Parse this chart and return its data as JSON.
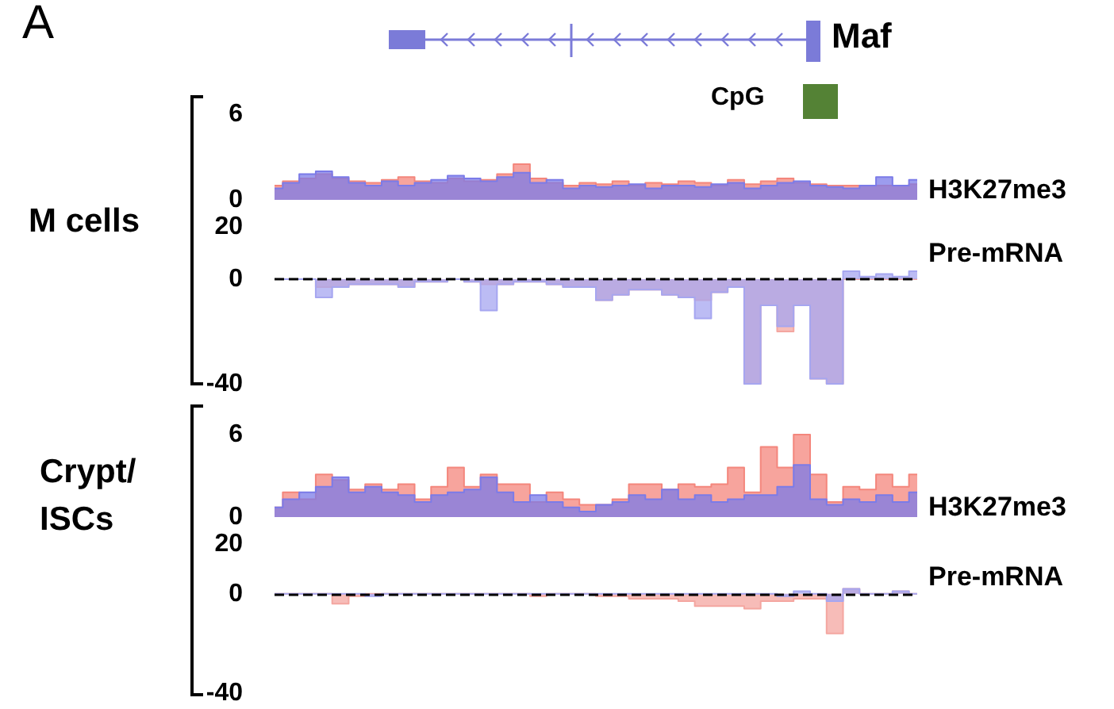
{
  "chart_data": [
    {
      "type": "area",
      "annotations": [
        "H3K27me3",
        "A",
        "Maf",
        "CpG",
        "M cells"
      ],
      "categories": [
        null,
        null,
        null,
        null,
        null,
        null,
        null,
        null,
        null,
        null,
        null,
        null,
        null,
        null,
        null,
        null,
        null,
        null,
        null,
        null,
        null,
        null,
        null,
        null,
        null,
        null,
        null,
        null,
        null,
        null,
        null,
        null,
        null,
        null,
        null,
        null,
        null,
        null,
        null,
        null
      ],
      "ylim": [
        0,
        6
      ],
      "yticks": [
        0,
        6
      ],
      "tick_labels": "y",
      "series": [
        {
          "color": "#f4867c",
          "values": [
            1.0,
            1.3,
            1.5,
            1.8,
            1.5,
            1.3,
            1.2,
            1.4,
            1.6,
            1.3,
            1.2,
            1.5,
            1.3,
            1.4,
            1.8,
            2.5,
            1.5,
            1.2,
            1.0,
            1.2,
            1.1,
            1.3,
            1.0,
            1.2,
            1.1,
            1.3,
            1.2,
            1.0,
            1.4,
            1.1,
            1.3,
            1.5,
            1.2,
            1.1,
            1.0,
            1.0,
            1.0,
            1.0,
            1.0,
            1.1
          ]
        },
        {
          "color": "#7b7be8",
          "values": [
            0.8,
            1.2,
            1.8,
            2.0,
            1.6,
            1.2,
            1.0,
            1.3,
            1.0,
            1.2,
            1.4,
            1.7,
            1.5,
            1.3,
            1.6,
            1.9,
            1.2,
            1.4,
            0.8,
            1.0,
            0.9,
            1.0,
            1.1,
            0.8,
            1.0,
            1.0,
            0.9,
            1.1,
            1.2,
            0.8,
            1.0,
            1.2,
            1.3,
            1.0,
            0.9,
            0.8,
            1.0,
            1.6,
            1.0,
            1.4
          ]
        }
      ]
    },
    {
      "type": "area",
      "annotations": [
        "Pre-mRNA"
      ],
      "categories": [
        null,
        null,
        null,
        null,
        null,
        null,
        null,
        null,
        null,
        null,
        null,
        null,
        null,
        null,
        null,
        null,
        null,
        null,
        null,
        null,
        null,
        null,
        null,
        null,
        null,
        null,
        null,
        null,
        null,
        null,
        null,
        null,
        null,
        null,
        null,
        null,
        null,
        null,
        null,
        null
      ],
      "ylim": [
        -40,
        20
      ],
      "yticks": [
        -40,
        0,
        20
      ],
      "tick_labels": "y",
      "ref_lines": [
        {
          "axis": "y",
          "value": 0,
          "color": "#000000",
          "line_style": "dashed"
        }
      ],
      "series": [
        {
          "color": "#f4a6a0",
          "values": [
            0,
            0,
            0,
            -3,
            -3,
            -2,
            -2,
            -2,
            -3,
            -1,
            -1,
            0,
            -1,
            -2,
            -2,
            -1,
            -1,
            -2,
            -3,
            -3,
            -8,
            -6,
            -4,
            -4,
            -6,
            -7,
            -8,
            -5,
            -3,
            -40,
            -10,
            -20,
            -10,
            -38,
            -40,
            0,
            0,
            0,
            0,
            0
          ]
        },
        {
          "color": "#a6a6f0",
          "values": [
            0,
            0,
            0,
            -7,
            -3,
            -2,
            -2,
            -2,
            -3,
            -1,
            -1,
            0,
            -1,
            -12,
            -2,
            -1,
            -1,
            -2,
            -3,
            -3,
            -8,
            -6,
            -4,
            -4,
            -6,
            -7,
            -15,
            -5,
            -3,
            -40,
            -10,
            -18,
            -10,
            -38,
            -40,
            3,
            1,
            2,
            1,
            3
          ]
        }
      ]
    },
    {
      "type": "area",
      "annotations": [
        "H3K27me3",
        "Crypt/ ISCs"
      ],
      "categories": [
        null,
        null,
        null,
        null,
        null,
        null,
        null,
        null,
        null,
        null,
        null,
        null,
        null,
        null,
        null,
        null,
        null,
        null,
        null,
        null,
        null,
        null,
        null,
        null,
        null,
        null,
        null,
        null,
        null,
        null,
        null,
        null,
        null,
        null,
        null,
        null,
        null,
        null,
        null,
        null
      ],
      "ylim": [
        0,
        6
      ],
      "yticks": [
        0,
        6
      ],
      "tick_labels": "y",
      "series": [
        {
          "color": "#f4867c",
          "values": [
            0.7,
            1.8,
            1.3,
            3.1,
            2.7,
            2.0,
            2.4,
            2.0,
            2.4,
            1.3,
            2.2,
            3.6,
            2.2,
            3.1,
            2.4,
            2.4,
            1.1,
            1.8,
            1.3,
            0.9,
            0.9,
            1.3,
            2.4,
            2.4,
            2.0,
            2.4,
            2.2,
            2.4,
            3.6,
            1.8,
            5.1,
            3.6,
            6.0,
            3.1,
            1.1,
            2.2,
            2.0,
            3.1,
            2.2,
            3.1
          ]
        },
        {
          "color": "#7b7be8",
          "values": [
            0.7,
            1.3,
            1.8,
            2.2,
            2.9,
            1.8,
            2.2,
            1.8,
            1.6,
            1.1,
            1.6,
            1.8,
            2.0,
            2.9,
            1.8,
            1.1,
            1.6,
            1.1,
            0.7,
            0.4,
            0.9,
            1.1,
            1.6,
            1.3,
            2.0,
            1.3,
            1.6,
            1.1,
            1.3,
            1.6,
            1.6,
            2.2,
            3.8,
            1.3,
            0.9,
            1.3,
            1.1,
            1.6,
            1.1,
            1.8
          ]
        }
      ]
    },
    {
      "type": "area",
      "annotations": [
        "Pre-mRNA"
      ],
      "categories": [
        null,
        null,
        null,
        null,
        null,
        null,
        null,
        null,
        null,
        null,
        null,
        null,
        null,
        null,
        null,
        null,
        null,
        null,
        null,
        null,
        null,
        null,
        null,
        null,
        null,
        null,
        null,
        null,
        null,
        null,
        null,
        null,
        null,
        null,
        null,
        null,
        null,
        null,
        null,
        null
      ],
      "ylim": [
        -40,
        20
      ],
      "yticks": [
        -40,
        0,
        20
      ],
      "tick_labels": "y",
      "ref_lines": [
        {
          "axis": "y",
          "value": 0,
          "color": "#000000",
          "line_style": "dashed"
        }
      ],
      "series": [
        {
          "color": "#f4a6a0",
          "values": [
            0,
            0,
            0,
            0,
            -4,
            -1,
            0,
            0,
            0,
            0,
            0,
            0,
            0,
            0,
            0,
            0,
            -1,
            0,
            0,
            0,
            -1,
            -1,
            -2,
            -2,
            -2,
            -3,
            -5,
            -5,
            -5,
            -6,
            -3,
            -3,
            -2,
            -2,
            -16,
            2,
            0,
            0,
            1,
            0
          ]
        },
        {
          "color": "#a6a6f0",
          "values": [
            0,
            0,
            0,
            0,
            0,
            0,
            -1,
            0,
            0,
            0,
            0,
            0,
            0,
            0,
            0,
            0,
            0,
            0,
            0,
            0,
            0,
            0,
            0,
            0,
            0,
            0,
            0,
            0,
            0,
            0,
            0,
            -1,
            1,
            0,
            -3,
            2,
            0,
            0,
            1,
            0
          ]
        }
      ]
    }
  ]
}
